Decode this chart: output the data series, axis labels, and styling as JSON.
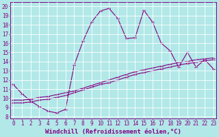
{
  "xlabel": "Windchill (Refroidissement éolien,°C)",
  "bg_color": "#b2e8e8",
  "line_color": "#800080",
  "grid_color": "#ffffff",
  "x_ticks": [
    0,
    1,
    2,
    3,
    4,
    5,
    6,
    7,
    8,
    9,
    10,
    11,
    12,
    13,
    14,
    15,
    16,
    17,
    18,
    19,
    20,
    21,
    22,
    23
  ],
  "y_ticks": [
    8,
    9,
    10,
    11,
    12,
    13,
    14,
    15,
    16,
    17,
    18,
    19,
    20
  ],
  "ylim": [
    7.8,
    20.5
  ],
  "xlim": [
    -0.3,
    23.3
  ],
  "line1_x": [
    0,
    1,
    2,
    3,
    4,
    5,
    6,
    7,
    8,
    9,
    10,
    11,
    12,
    13,
    14,
    15,
    16,
    17,
    18,
    19,
    20,
    21,
    22,
    23
  ],
  "line1_y": [
    11.5,
    10.5,
    9.7,
    9.1,
    8.6,
    8.4,
    8.8,
    13.6,
    16.2,
    18.3,
    19.5,
    19.8,
    18.7,
    16.5,
    16.6,
    19.6,
    18.3,
    16.0,
    15.2,
    13.4,
    15.0,
    13.4,
    14.2,
    13.2
  ],
  "line2_x": [
    0,
    1,
    2,
    3,
    4,
    5,
    6,
    7,
    8,
    9,
    10,
    11,
    12,
    13,
    14,
    15,
    16,
    17,
    18,
    19,
    20,
    21,
    22,
    23
  ],
  "line2_y": [
    9.8,
    9.8,
    9.9,
    10.1,
    10.2,
    10.4,
    10.6,
    10.8,
    11.1,
    11.4,
    11.7,
    12.0,
    12.3,
    12.6,
    12.9,
    13.1,
    13.3,
    13.5,
    13.7,
    13.9,
    14.0,
    14.2,
    14.3,
    14.4
  ],
  "line3_x": [
    0,
    1,
    2,
    3,
    4,
    5,
    6,
    7,
    8,
    9,
    10,
    11,
    12,
    13,
    14,
    15,
    16,
    17,
    18,
    19,
    20,
    21,
    22,
    23
  ],
  "line3_y": [
    9.5,
    9.5,
    9.6,
    9.8,
    9.9,
    10.1,
    10.3,
    10.6,
    10.9,
    11.2,
    11.5,
    11.7,
    12.0,
    12.3,
    12.6,
    12.8,
    13.0,
    13.2,
    13.4,
    13.6,
    13.8,
    13.9,
    14.1,
    14.2
  ],
  "tick_fontsize": 5.5,
  "xlabel_fontsize": 6.5
}
